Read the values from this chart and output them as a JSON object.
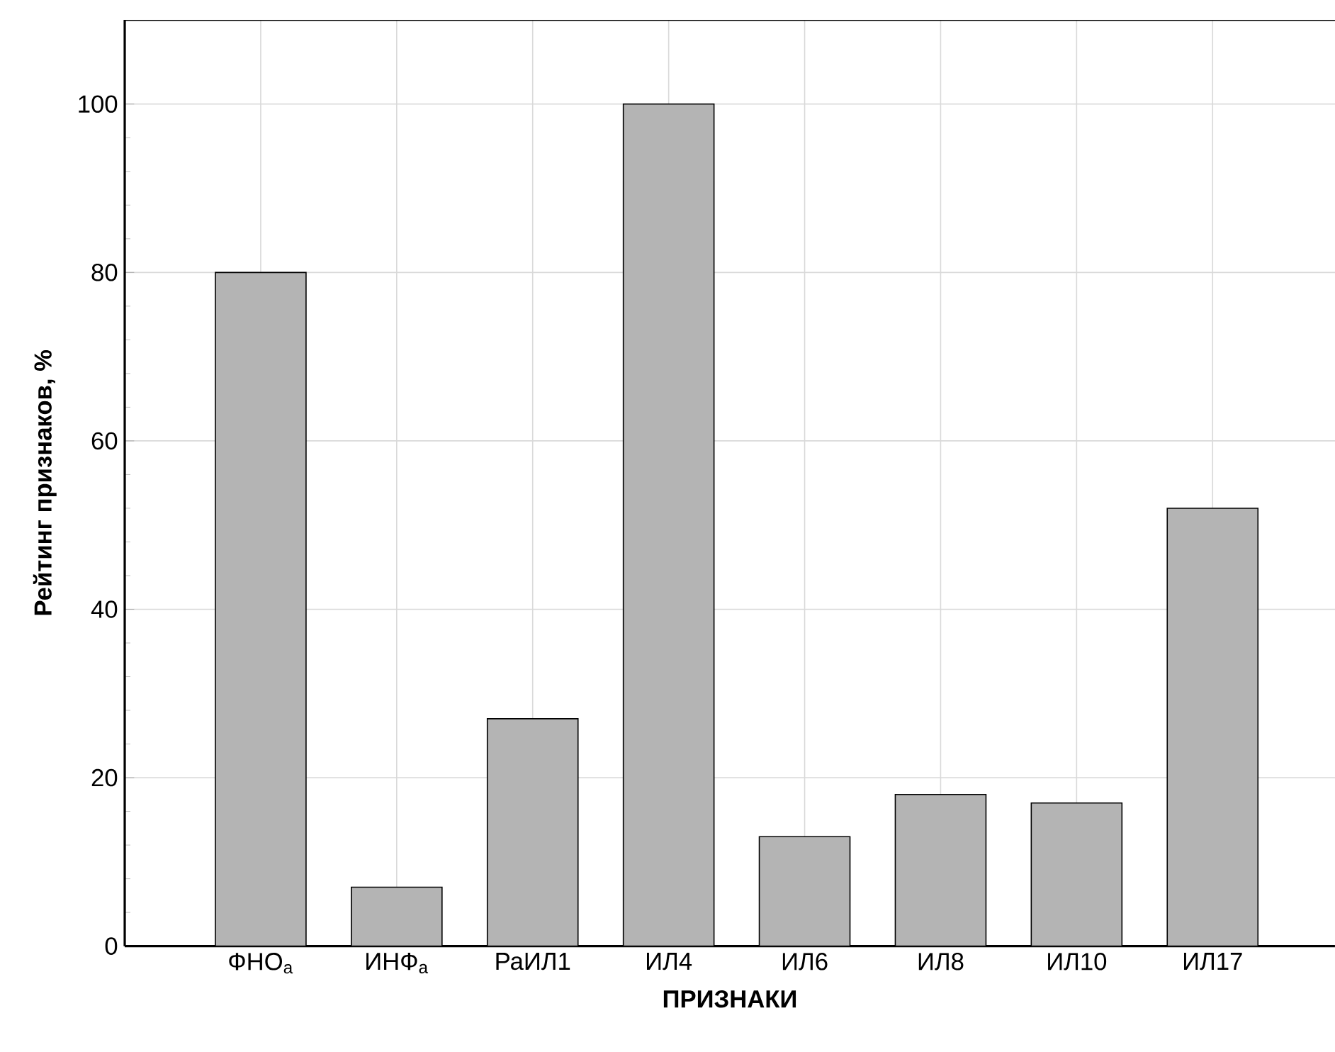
{
  "chart_data": {
    "type": "bar",
    "xlabel": "ПРИЗНАКИ",
    "ylabel": "Рейтинг признаков, %",
    "categories": [
      "ФНО$_{a}$",
      "ИНФ$_{a}$",
      "РаИЛ1",
      "ИЛ4",
      "ИЛ6",
      "ИЛ8",
      "ИЛ10",
      "ИЛ17"
    ],
    "values": [
      80,
      7,
      27,
      100,
      13,
      18,
      17,
      52
    ],
    "color": "#b4b4b4",
    "ylim": [
      0,
      110
    ],
    "yticks": [
      0,
      20,
      40,
      60,
      80,
      100
    ],
    "grid": true
  }
}
